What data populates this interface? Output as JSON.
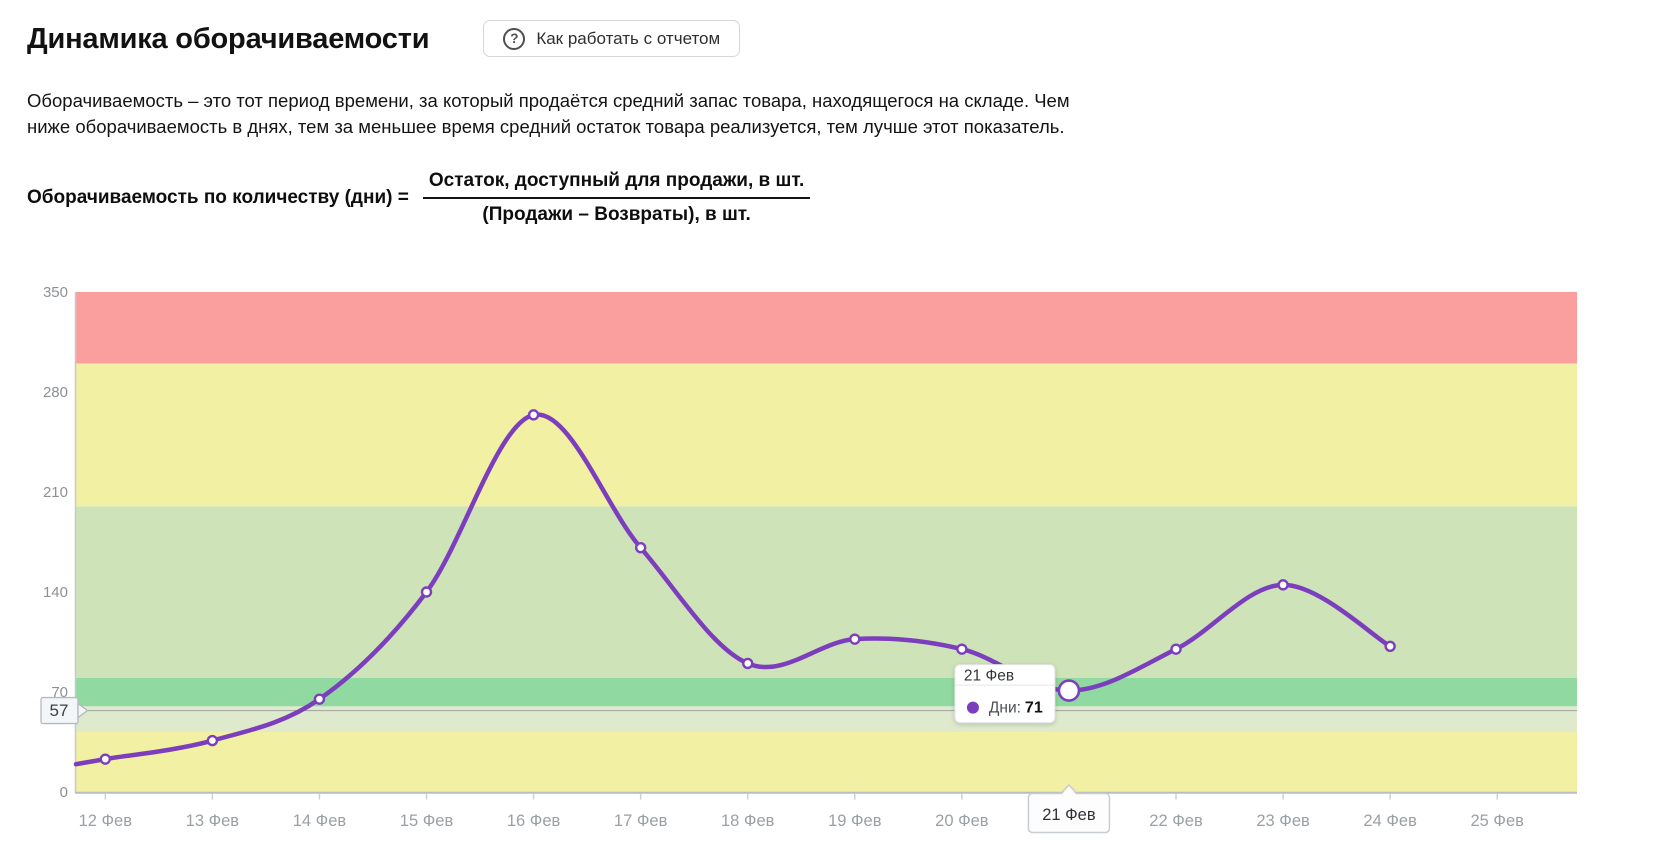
{
  "header": {
    "title": "Динамика оборачиваемости",
    "help_icon": "?",
    "help_button_label": "Как работать с отчетом"
  },
  "description": "Оборачиваемость – это тот период времени, за который продаётся средний запас товара, находящегося на складе. Чем ниже оборачиваемость в днях, тем за меньшее время средний остаток товара реализуется, тем лучше этот показатель.",
  "formula": {
    "label": "Оборачиваемость по количеству (дни) =",
    "numerator": "Остаток, доступный для продажи, в шт.",
    "denominator": "(Продажи – Возвраты), в шт."
  },
  "chart_data": {
    "type": "line",
    "title": "",
    "categories": [
      "12 Фев",
      "13 Фев",
      "14 Фев",
      "15 Фев",
      "16 Фев",
      "17 Фев",
      "18 Фев",
      "19 Фев",
      "20 Фев",
      "21 Фев",
      "22 Фев",
      "23 Фев",
      "24 Фев",
      "25 Фев"
    ],
    "series": [
      {
        "name": "Дни",
        "values": [
          23,
          36,
          65,
          140,
          264,
          171,
          90,
          107,
          100,
          71,
          100,
          145,
          102,
          null
        ]
      }
    ],
    "ylim": [
      0,
      350
    ],
    "yticks": [
      0,
      70,
      140,
      210,
      280,
      350
    ],
    "grid": false,
    "legend": "none",
    "line_color": "#7c3ebd",
    "marker_fill": "#ffffff",
    "zones": [
      {
        "from": 0,
        "to": 42,
        "color": "#f2f0a3"
      },
      {
        "from": 42,
        "to": 60,
        "color": "#dfe9cb"
      },
      {
        "from": 60,
        "to": 80,
        "color": "#90d9a0"
      },
      {
        "from": 80,
        "to": 200,
        "color": "#cee3b8"
      },
      {
        "from": 200,
        "to": 300,
        "color": "#f2f0a3"
      },
      {
        "from": 300,
        "to": 350,
        "color": "#fb9e9e"
      }
    ],
    "threshold": {
      "value": 57,
      "label": "57",
      "line_color": "#9aa09e"
    },
    "tooltip": {
      "category": "21 Фев",
      "series_label": "Дни:",
      "value": "71"
    },
    "selected_category": "21 Фев"
  }
}
